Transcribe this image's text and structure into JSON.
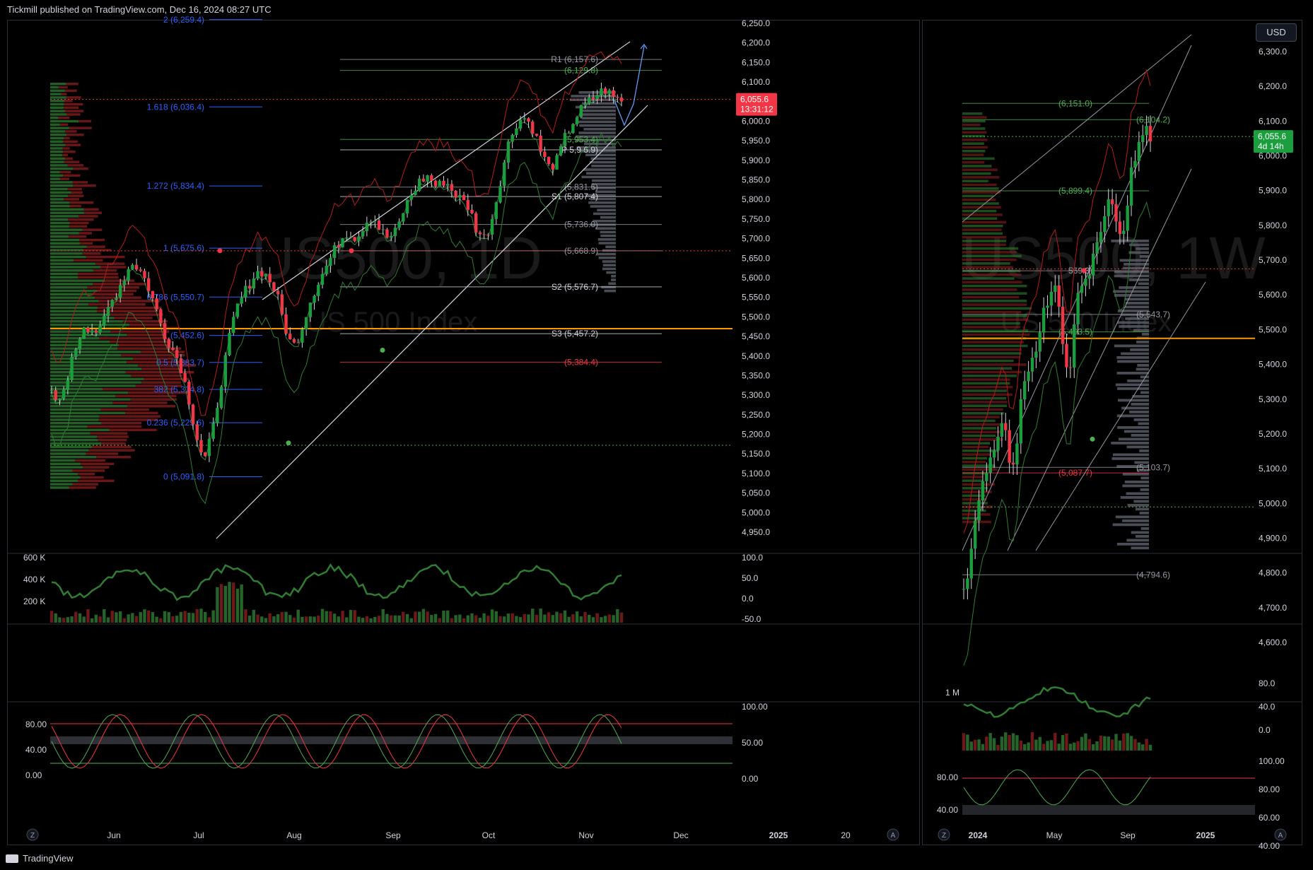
{
  "header": {
    "publisher": "Tickmill published on TradingView.com, Dec 16, 2024 08:27 UTC"
  },
  "footer": {
    "brand": "TradingView"
  },
  "currency_button": "USD",
  "chart_data": [
    {
      "id": "daily",
      "type": "line",
      "watermark": "US500, 1D",
      "watermark_sub": "US 500 Index",
      "ylim": [
        4950,
        6250
      ],
      "price_ticks": [
        "6,250.0",
        "6,200.0",
        "6,150.0",
        "6,100.0",
        "6,050.0",
        "6,000.0",
        "5,950.0",
        "5,900.0",
        "5,850.0",
        "5,800.0",
        "5,750.0",
        "5,700.0",
        "5,650.0",
        "5,600.0",
        "5,550.0",
        "5,500.0",
        "5,450.0",
        "5,400.0",
        "5,350.0",
        "5,300.0",
        "5,250.0",
        "5,200.0",
        "5,150.0",
        "5,100.0",
        "5,050.0",
        "5,000.0",
        "4,950.0"
      ],
      "price_tick_values": [
        6250,
        6200,
        6150,
        6100,
        6050,
        6000,
        5950,
        5900,
        5850,
        5800,
        5750,
        5700,
        5650,
        5600,
        5550,
        5500,
        5450,
        5400,
        5350,
        5300,
        5250,
        5200,
        5150,
        5100,
        5050,
        5000,
        4950
      ],
      "time_ticks": [
        "Jun",
        "Jul",
        "Aug",
        "Sep",
        "Oct",
        "Nov",
        "Dec",
        "2025",
        "20"
      ],
      "last_price": {
        "value": "6,055.6",
        "countdown": "13:31:12",
        "numeric": 6055.6
      },
      "fib_levels": [
        {
          "label": "2 (6,259.4)",
          "value": 6259.4
        },
        {
          "label": "1.618 (6,036.4)",
          "value": 6036.4
        },
        {
          "label": "1.272 (5,834.4)",
          "value": 5834.4
        },
        {
          "label": "1 (5,675.6)",
          "value": 5675.6
        },
        {
          "label": "0.786 (5,550.7)",
          "value": 5550.7
        },
        {
          "label": "(5,452.6)",
          "value": 5452.6
        },
        {
          "label": "0.5 (5,383.7)",
          "value": 5383.7
        },
        {
          "label": "382 (5,314.8)",
          "value": 5314.8
        },
        {
          "label": "0.236 (5,229.6)",
          "value": 5229.6
        },
        {
          "label": "0 (5,091.8)",
          "value": 5091.8
        }
      ],
      "pivot_levels": [
        {
          "label": "R1 (6,157.6)",
          "value": 6157.6
        },
        {
          "label": "(6,129.8)",
          "value": 6129.8
        },
        {
          "label": "(5,953.4)",
          "value": 5953.4
        },
        {
          "label": "P 5,9 6.9)",
          "value": 5926.9
        },
        {
          "label": "(5,831.6)",
          "value": 5831.6
        },
        {
          "label": "S1 (5,807.4)",
          "value": 5807.4
        },
        {
          "label": "(5,736.0)",
          "value": 5736.0
        },
        {
          "label": "(5,668.9)",
          "value": 5668.9
        },
        {
          "label": "S2 (5,576.7)",
          "value": 5576.7
        },
        {
          "label": "S3 (5,457.2)",
          "value": 5457.2
        },
        {
          "label": "(5,384.4)",
          "value": 5384.4
        }
      ],
      "volume_ticks": [
        "600 K",
        "400 K",
        "200 K"
      ],
      "rsi_ticks": [
        "100.0",
        "50.0",
        "0.0",
        "-50.0"
      ],
      "stoch_left_ticks": [
        "80.00",
        "40.00",
        "0.00"
      ],
      "stoch_right_ticks": [
        "100.00",
        "50.00",
        "0.00"
      ],
      "nav_z": "Z",
      "nav_a": "A"
    },
    {
      "id": "weekly",
      "type": "line",
      "watermark": "US500, 1W",
      "watermark_sub": "US 500 Index",
      "ylim": [
        4600,
        6350
      ],
      "price_ticks": [
        "6,300.0",
        "6,200.0",
        "6,100.0",
        "6,000.0",
        "5,900.0",
        "5,800.0",
        "5,700.0",
        "5,600.0",
        "5,500.0",
        "5,400.0",
        "5,300.0",
        "5,200.0",
        "5,100.0",
        "5,000.0",
        "4,900.0",
        "4,800.0",
        "4,700.0",
        "4,600.0"
      ],
      "price_tick_values": [
        6300,
        6200,
        6100,
        6000,
        5900,
        5800,
        5700,
        5600,
        5500,
        5400,
        5300,
        5200,
        5100,
        5000,
        4900,
        4800,
        4700,
        4600
      ],
      "time_ticks": [
        "2024",
        "May",
        "Sep",
        "2025"
      ],
      "last_price": {
        "value": "6,055.6",
        "countdown": "4d 14h",
        "numeric": 6055.6
      },
      "levels": [
        {
          "label": "(6,151.0)",
          "value": 6151.0
        },
        {
          "label": "(6,104.2)",
          "value": 6104.2
        },
        {
          "label": "(5,899.4)",
          "value": 5899.4
        },
        {
          "label": "569.3)",
          "value": 5669.3
        },
        {
          "label": "(5,543.7)",
          "value": 5543.7
        },
        {
          "label": "(5,493.5)",
          "value": 5493.5
        },
        {
          "label": "(5,103.7)",
          "value": 5103.7
        },
        {
          "label": "(5,087.7)",
          "value": 5087.7
        },
        {
          "label": "(4,794.6)",
          "value": 4794.6
        }
      ],
      "volume_ticks": [
        "1 M"
      ],
      "rsi_ticks": [
        "80.0",
        "40.0",
        "0.0"
      ],
      "stoch_left_ticks": [
        "80.00",
        "40.00"
      ],
      "stoch_right_ticks": [
        "100.00",
        "80.00",
        "60.00",
        "40.00"
      ],
      "nav_z": "Z",
      "nav_a": "A"
    }
  ]
}
